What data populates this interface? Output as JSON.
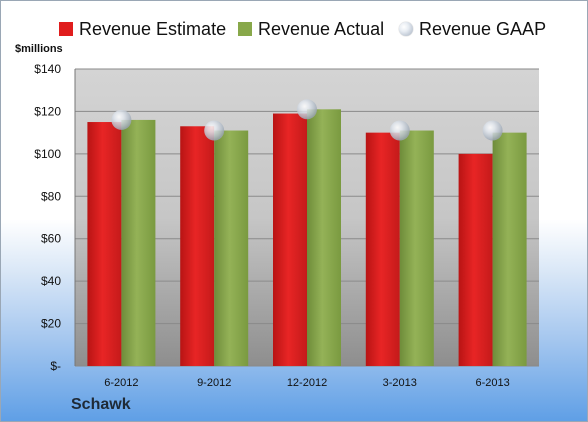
{
  "legend": {
    "estimate_label": "Revenue Estimate",
    "actual_label": "Revenue Actual",
    "gaap_label": "Revenue GAAP"
  },
  "units": "$millions",
  "company": "Schawk",
  "colors": {
    "estimate": "#e01d1d",
    "actual": "#88a84a",
    "gaap_marker": "#c3cad4",
    "plot_bg": "#c8c8c8"
  },
  "chart_data": {
    "type": "bar",
    "categories": [
      "6-2012",
      "9-2012",
      "12-2012",
      "3-2013",
      "6-2013"
    ],
    "series": [
      {
        "name": "Revenue Estimate",
        "values": [
          115,
          113,
          119,
          110,
          100
        ]
      },
      {
        "name": "Revenue Actual",
        "values": [
          116,
          111,
          121,
          111,
          110
        ]
      },
      {
        "name": "Revenue GAAP",
        "values": [
          116,
          111,
          121,
          111,
          111
        ]
      }
    ],
    "ylabel": "$millions",
    "ylim": [
      0,
      140
    ],
    "yticks": [
      0,
      20,
      40,
      60,
      80,
      100,
      120,
      140
    ],
    "ytick_labels": [
      "$-",
      "$20",
      "$40",
      "$60",
      "$80",
      "$100",
      "$120",
      "$140"
    ],
    "grid": true,
    "legend_position": "top"
  }
}
